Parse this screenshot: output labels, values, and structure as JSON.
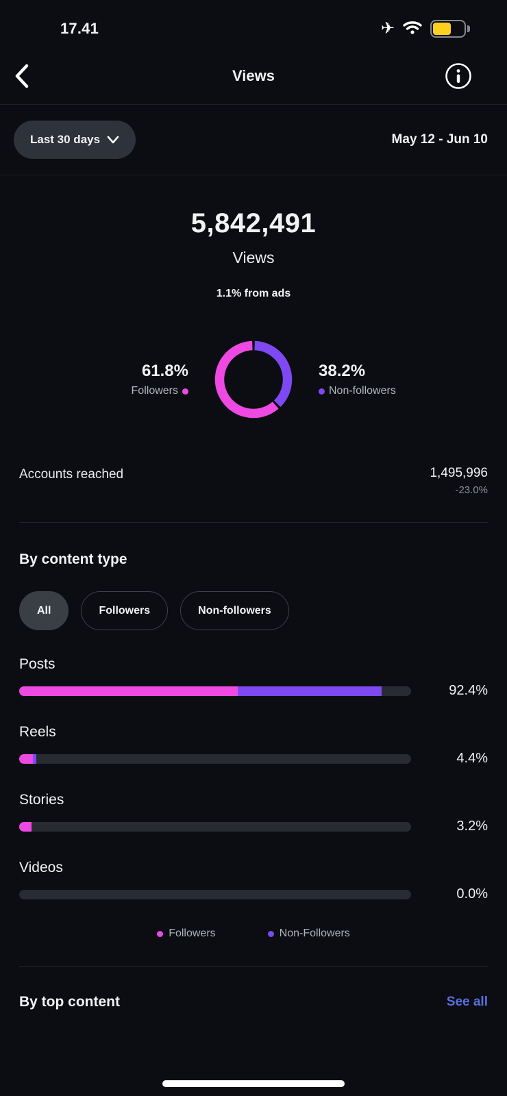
{
  "colors": {
    "followers_pink": "#ee49e2",
    "non_followers_purple": "#7e48f2",
    "battery_yellow": "#fcd020",
    "see_all_blue": "#5b6fe0"
  },
  "status_bar": {
    "time": "17.41"
  },
  "header": {
    "title": "Views"
  },
  "filter": {
    "range_label": "Last 30 days",
    "date_range": "May 12 - Jun 10"
  },
  "summary": {
    "value": "5,842,491",
    "label": "Views",
    "ads_note": "1.1% from ads"
  },
  "donut": {
    "followers_pct": "61.8%",
    "followers_label": "Followers",
    "non_followers_pct": "38.2%",
    "non_followers_label": "Non-followers"
  },
  "accounts_reached": {
    "label": "Accounts reached",
    "value": "1,495,996",
    "change": "-23.0%"
  },
  "content_type": {
    "heading": "By content type",
    "tabs": [
      {
        "label": "All",
        "active": true
      },
      {
        "label": "Followers",
        "active": false
      },
      {
        "label": "Non-followers",
        "active": false
      }
    ],
    "rows": [
      {
        "label": "Posts",
        "value": "92.4%",
        "followers_w": 55.8,
        "non_followers_w": 36.6
      },
      {
        "label": "Reels",
        "value": "4.4%",
        "followers_w": 3.5,
        "non_followers_w": 0.9
      },
      {
        "label": "Stories",
        "value": "3.2%",
        "followers_w": 3.2,
        "non_followers_w": 0
      },
      {
        "label": "Videos",
        "value": "0.0%",
        "followers_w": 0,
        "non_followers_w": 0
      }
    ],
    "legend": [
      {
        "label": "Followers"
      },
      {
        "label": "Non-Followers"
      }
    ]
  },
  "top_content": {
    "heading": "By top content",
    "see_all": "See all"
  },
  "chart_data": [
    {
      "type": "pie",
      "title": "Views by follower type",
      "categories": [
        "Followers",
        "Non-followers"
      ],
      "values": [
        61.8,
        38.2
      ],
      "unit": "%",
      "colors": [
        "#ee49e2",
        "#7e48f2"
      ],
      "total_views": 5842491,
      "from_ads_pct": 1.1
    },
    {
      "type": "bar",
      "title": "Views by content type",
      "categories": [
        "Posts",
        "Reels",
        "Stories",
        "Videos"
      ],
      "values": [
        92.4,
        4.4,
        3.2,
        0.0
      ],
      "series": [
        {
          "name": "Followers",
          "values": [
            55.8,
            3.5,
            3.2,
            0
          ]
        },
        {
          "name": "Non-Followers",
          "values": [
            36.6,
            0.9,
            0,
            0
          ]
        }
      ],
      "unit": "%",
      "xlim": [
        0,
        100
      ],
      "legend_position": "bottom"
    }
  ]
}
